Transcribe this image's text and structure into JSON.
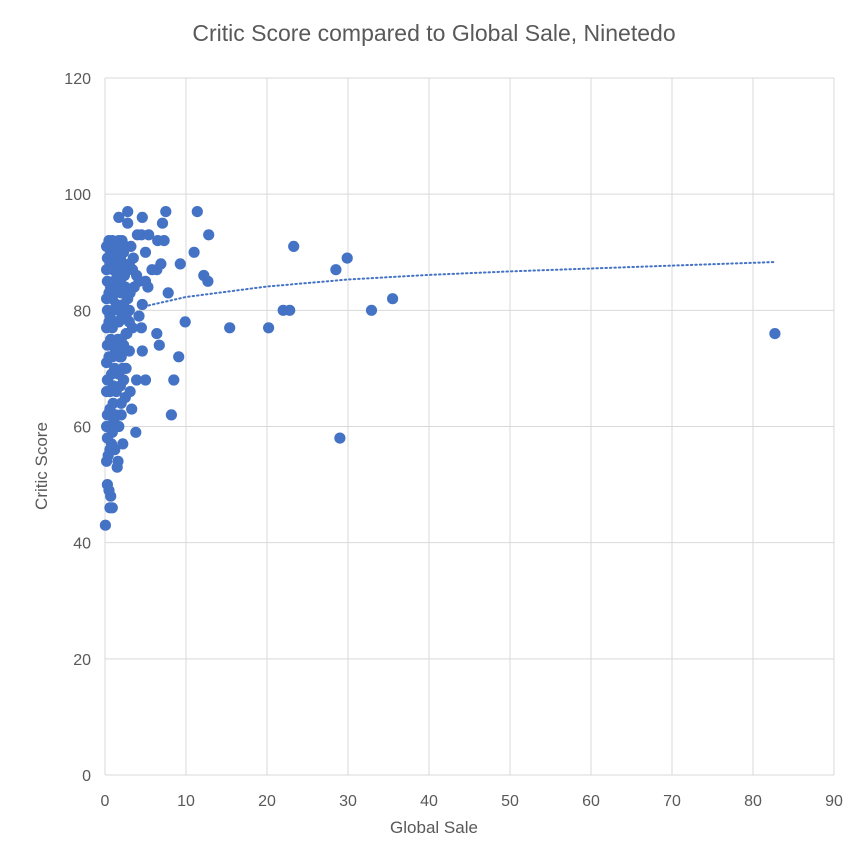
{
  "chart_data": {
    "type": "scatter",
    "title": "Critic Score compared to Global Sale, Ninetedo",
    "xlabel": "Global Sale",
    "ylabel": "Critic Score",
    "xlim": [
      0,
      90
    ],
    "ylim": [
      0,
      120
    ],
    "x_ticks": [
      0,
      10,
      20,
      30,
      40,
      50,
      60,
      70,
      80,
      90
    ],
    "y_ticks": [
      0,
      20,
      40,
      60,
      80,
      100,
      120
    ],
    "grid": true,
    "legend": "none",
    "marker_color": "#4472C4",
    "trendline": {
      "type": "logarithmic",
      "style": "dotted",
      "color": "#4472C4",
      "points": [
        [
          4.3,
          80.5
        ],
        [
          10,
          82.3
        ],
        [
          20,
          84.1
        ],
        [
          30,
          85.3
        ],
        [
          40,
          86.1
        ],
        [
          50,
          86.7
        ],
        [
          60,
          87.2
        ],
        [
          70,
          87.7
        ],
        [
          82.5,
          88.3
        ]
      ]
    },
    "points": [
      [
        0.05,
        43
      ],
      [
        0.3,
        50
      ],
      [
        0.5,
        49
      ],
      [
        0.7,
        48
      ],
      [
        0.6,
        46
      ],
      [
        0.9,
        46
      ],
      [
        0.2,
        54
      ],
      [
        0.4,
        55
      ],
      [
        0.6,
        56
      ],
      [
        0.3,
        58
      ],
      [
        0.8,
        57
      ],
      [
        1.2,
        56
      ],
      [
        1.5,
        53
      ],
      [
        1.6,
        54
      ],
      [
        2.2,
        57
      ],
      [
        0.2,
        60
      ],
      [
        0.5,
        60
      ],
      [
        0.9,
        59
      ],
      [
        1.1,
        61
      ],
      [
        1.7,
        60
      ],
      [
        2.0,
        62
      ],
      [
        0.3,
        62
      ],
      [
        0.6,
        63
      ],
      [
        1.0,
        64
      ],
      [
        1.3,
        62
      ],
      [
        2.0,
        64
      ],
      [
        2.5,
        65
      ],
      [
        0.2,
        66
      ],
      [
        0.6,
        66
      ],
      [
        1.0,
        67
      ],
      [
        1.4,
        66
      ],
      [
        1.9,
        67
      ],
      [
        2.3,
        68
      ],
      [
        0.3,
        68
      ],
      [
        0.8,
        69
      ],
      [
        1.2,
        70
      ],
      [
        1.7,
        69
      ],
      [
        2.2,
        70
      ],
      [
        2.6,
        70
      ],
      [
        0.2,
        71
      ],
      [
        0.5,
        72
      ],
      [
        0.9,
        72
      ],
      [
        1.3,
        73
      ],
      [
        1.8,
        72
      ],
      [
        2.4,
        73
      ],
      [
        0.3,
        74
      ],
      [
        0.7,
        75
      ],
      [
        1.1,
        74
      ],
      [
        1.6,
        75
      ],
      [
        2.0,
        75
      ],
      [
        2.7,
        76
      ],
      [
        0.2,
        77
      ],
      [
        0.5,
        78
      ],
      [
        0.9,
        77
      ],
      [
        1.3,
        78
      ],
      [
        1.7,
        78
      ],
      [
        2.1,
        79
      ],
      [
        2.6,
        79
      ],
      [
        3.0,
        78
      ],
      [
        0.3,
        80
      ],
      [
        0.6,
        79
      ],
      [
        1.0,
        80
      ],
      [
        1.4,
        81
      ],
      [
        1.9,
        80
      ],
      [
        2.3,
        81
      ],
      [
        2.8,
        82
      ],
      [
        0.2,
        82
      ],
      [
        0.5,
        83
      ],
      [
        0.9,
        82
      ],
      [
        1.2,
        83
      ],
      [
        1.6,
        84
      ],
      [
        2.0,
        83
      ],
      [
        2.5,
        84
      ],
      [
        3.0,
        83
      ],
      [
        0.3,
        85
      ],
      [
        0.7,
        84
      ],
      [
        1.1,
        85
      ],
      [
        1.5,
        86
      ],
      [
        1.9,
        85
      ],
      [
        2.4,
        86
      ],
      [
        0.2,
        87
      ],
      [
        0.6,
        88
      ],
      [
        1.0,
        87
      ],
      [
        1.4,
        88
      ],
      [
        1.8,
        87
      ],
      [
        2.2,
        88
      ],
      [
        2.8,
        87
      ],
      [
        0.3,
        89
      ],
      [
        0.7,
        90
      ],
      [
        1.1,
        89
      ],
      [
        1.5,
        90
      ],
      [
        1.9,
        89
      ],
      [
        2.3,
        90
      ],
      [
        0.2,
        91
      ],
      [
        0.5,
        92
      ],
      [
        0.9,
        92
      ],
      [
        1.3,
        91
      ],
      [
        1.7,
        92
      ],
      [
        2.1,
        92
      ],
      [
        2.5,
        91
      ],
      [
        1.7,
        96
      ],
      [
        2.8,
        97
      ],
      [
        2.8,
        95
      ],
      [
        3.2,
        91
      ],
      [
        3.5,
        89
      ],
      [
        3.0,
        88
      ],
      [
        3.4,
        87
      ],
      [
        3.9,
        86
      ],
      [
        4.2,
        85
      ],
      [
        3.6,
        84
      ],
      [
        3.1,
        83
      ],
      [
        4.0,
        93
      ],
      [
        4.5,
        93
      ],
      [
        4.6,
        96
      ],
      [
        5.0,
        90
      ],
      [
        5.4,
        93
      ],
      [
        5.0,
        85
      ],
      [
        5.3,
        84
      ],
      [
        5.8,
        87
      ],
      [
        6.5,
        92
      ],
      [
        6.4,
        87
      ],
      [
        6.9,
        88
      ],
      [
        7.3,
        92
      ],
      [
        7.1,
        95
      ],
      [
        7.5,
        97
      ],
      [
        7.8,
        83
      ],
      [
        3.0,
        80
      ],
      [
        4.6,
        81
      ],
      [
        4.2,
        79
      ],
      [
        3.4,
        77
      ],
      [
        4.5,
        77
      ],
      [
        3.0,
        73
      ],
      [
        4.6,
        73
      ],
      [
        2.6,
        76
      ],
      [
        2.3,
        74
      ],
      [
        2.0,
        72
      ],
      [
        6.4,
        76
      ],
      [
        6.7,
        74
      ],
      [
        9.1,
        72
      ],
      [
        3.9,
        68
      ],
      [
        5.0,
        68
      ],
      [
        8.5,
        68
      ],
      [
        3.1,
        66
      ],
      [
        3.3,
        63
      ],
      [
        8.2,
        62
      ],
      [
        3.8,
        59
      ],
      [
        9.3,
        88
      ],
      [
        11.0,
        90
      ],
      [
        11.4,
        97
      ],
      [
        12.2,
        86
      ],
      [
        12.8,
        93
      ],
      [
        12.7,
        85
      ],
      [
        9.9,
        78
      ],
      [
        15.4,
        77
      ],
      [
        20.2,
        77
      ],
      [
        22.0,
        80
      ],
      [
        22.8,
        80
      ],
      [
        23.3,
        91
      ],
      [
        28.5,
        87
      ],
      [
        29.9,
        89
      ],
      [
        29.0,
        58
      ],
      [
        32.9,
        80
      ],
      [
        35.5,
        82
      ],
      [
        82.7,
        76
      ]
    ]
  }
}
